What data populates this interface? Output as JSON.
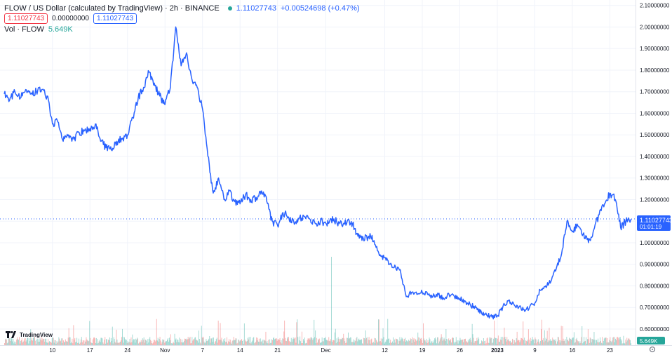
{
  "header": {
    "title": "FLOW / US Dollar (calculated by TradingView) · 2h · BINANCE",
    "last_value": "1.11027743",
    "change": "+0.00524698 (+0.47%)",
    "ohlc_left": "1.11027743",
    "ohlc_mid": "0.00000000",
    "ohlc_right": "1.11027743",
    "vol_label": "Vol · FLOW",
    "vol_value": "5.649K"
  },
  "price_badge": {
    "value": "1.11027743",
    "countdown": "01:01:19"
  },
  "volume_badge": "5.649K",
  "logo_text": "TradingView",
  "colors": {
    "line": "#2962ff",
    "vol_up": "#26a69a",
    "vol_down": "#ef5350",
    "grid": "#f0f3fa"
  },
  "chart_data": {
    "type": "line",
    "title": "FLOW / US Dollar (calculated by TradingView) · 2h · BINANCE",
    "xlabel": "",
    "ylabel": "",
    "ylim": [
      0.525,
      2.125
    ],
    "y_ticks": [
      "2.10000000",
      "2.00000000",
      "1.90000000",
      "1.80000000",
      "1.70000000",
      "1.60000000",
      "1.50000000",
      "1.40000000",
      "1.30000000",
      "1.20000000",
      "1.10000000",
      "1.00000000",
      "0.90000000",
      "0.80000000",
      "0.70000000",
      "0.60000000"
    ],
    "x_ticks": [
      {
        "label": "10",
        "t": 10
      },
      {
        "label": "17",
        "t": 17
      },
      {
        "label": "24",
        "t": 24
      },
      {
        "label": "Nov",
        "t": 31
      },
      {
        "label": "7",
        "t": 38
      },
      {
        "label": "14",
        "t": 45
      },
      {
        "label": "21",
        "t": 52
      },
      {
        "label": "Dec",
        "t": 61
      },
      {
        "label": "12",
        "t": 72
      },
      {
        "label": "19",
        "t": 79
      },
      {
        "label": "26",
        "t": 86
      },
      {
        "label": "2023",
        "t": 93,
        "bold": true
      },
      {
        "label": "9",
        "t": 100
      },
      {
        "label": "16",
        "t": 107
      },
      {
        "label": "23",
        "t": 114
      }
    ],
    "x_range": [
      1,
      118
    ],
    "series": [
      {
        "name": "",
        "points": [
          [
            1,
            1.69
          ],
          [
            2,
            1.66
          ],
          [
            3,
            1.7
          ],
          [
            4,
            1.67
          ],
          [
            5,
            1.71
          ],
          [
            6,
            1.69
          ],
          [
            7,
            1.7
          ],
          [
            8,
            1.71
          ],
          [
            9,
            1.68
          ],
          [
            10,
            1.55
          ],
          [
            11,
            1.56
          ],
          [
            12,
            1.47
          ],
          [
            13,
            1.5
          ],
          [
            14,
            1.48
          ],
          [
            15,
            1.51
          ],
          [
            16,
            1.52
          ],
          [
            17,
            1.53
          ],
          [
            18,
            1.55
          ],
          [
            19,
            1.47
          ],
          [
            20,
            1.44
          ],
          [
            21,
            1.43
          ],
          [
            22,
            1.47
          ],
          [
            23,
            1.48
          ],
          [
            24,
            1.5
          ],
          [
            25,
            1.58
          ],
          [
            26,
            1.67
          ],
          [
            27,
            1.72
          ],
          [
            28,
            1.79
          ],
          [
            29,
            1.74
          ],
          [
            30,
            1.68
          ],
          [
            31,
            1.64
          ],
          [
            32,
            1.72
          ],
          [
            33,
            2.0
          ],
          [
            34,
            1.82
          ],
          [
            35,
            1.88
          ],
          [
            36,
            1.76
          ],
          [
            37,
            1.72
          ],
          [
            38,
            1.62
          ],
          [
            39,
            1.4
          ],
          [
            40,
            1.23
          ],
          [
            41,
            1.3
          ],
          [
            42,
            1.2
          ],
          [
            43,
            1.24
          ],
          [
            44,
            1.19
          ],
          [
            45,
            1.18
          ],
          [
            46,
            1.22
          ],
          [
            47,
            1.2
          ],
          [
            48,
            1.21
          ],
          [
            49,
            1.24
          ],
          [
            50,
            1.19
          ],
          [
            51,
            1.1
          ],
          [
            52,
            1.08
          ],
          [
            53,
            1.14
          ],
          [
            54,
            1.12
          ],
          [
            55,
            1.1
          ],
          [
            56,
            1.11
          ],
          [
            57,
            1.12
          ],
          [
            58,
            1.11
          ],
          [
            59,
            1.09
          ],
          [
            60,
            1.1
          ],
          [
            61,
            1.09
          ],
          [
            62,
            1.11
          ],
          [
            63,
            1.1
          ],
          [
            64,
            1.08
          ],
          [
            65,
            1.1
          ],
          [
            66,
            1.09
          ],
          [
            67,
            1.03
          ],
          [
            68,
            1.02
          ],
          [
            69,
            1.03
          ],
          [
            70,
            1.01
          ],
          [
            71,
            0.94
          ],
          [
            72,
            0.93
          ],
          [
            73,
            0.9
          ],
          [
            74,
            0.89
          ],
          [
            75,
            0.86
          ],
          [
            76,
            0.75
          ],
          [
            77,
            0.77
          ],
          [
            78,
            0.76
          ],
          [
            79,
            0.77
          ],
          [
            80,
            0.76
          ],
          [
            81,
            0.75
          ],
          [
            82,
            0.76
          ],
          [
            83,
            0.74
          ],
          [
            84,
            0.76
          ],
          [
            85,
            0.75
          ],
          [
            86,
            0.74
          ],
          [
            87,
            0.73
          ],
          [
            88,
            0.71
          ],
          [
            89,
            0.7
          ],
          [
            90,
            0.68
          ],
          [
            91,
            0.665
          ],
          [
            92,
            0.655
          ],
          [
            93,
            0.66
          ],
          [
            94,
            0.7
          ],
          [
            95,
            0.73
          ],
          [
            96,
            0.72
          ],
          [
            97,
            0.7
          ],
          [
            98,
            0.69
          ],
          [
            99,
            0.7
          ],
          [
            100,
            0.72
          ],
          [
            101,
            0.78
          ],
          [
            102,
            0.8
          ],
          [
            103,
            0.82
          ],
          [
            104,
            0.88
          ],
          [
            105,
            0.95
          ],
          [
            106,
            1.1
          ],
          [
            107,
            1.05
          ],
          [
            108,
            1.08
          ],
          [
            109,
            1.04
          ],
          [
            110,
            1.0
          ],
          [
            111,
            1.06
          ],
          [
            112,
            1.13
          ],
          [
            113,
            1.18
          ],
          [
            114,
            1.23
          ],
          [
            115,
            1.2
          ],
          [
            116,
            1.07
          ],
          [
            117,
            1.1
          ],
          [
            118,
            1.11
          ]
        ]
      }
    ],
    "last_price": 1.11027743
  }
}
